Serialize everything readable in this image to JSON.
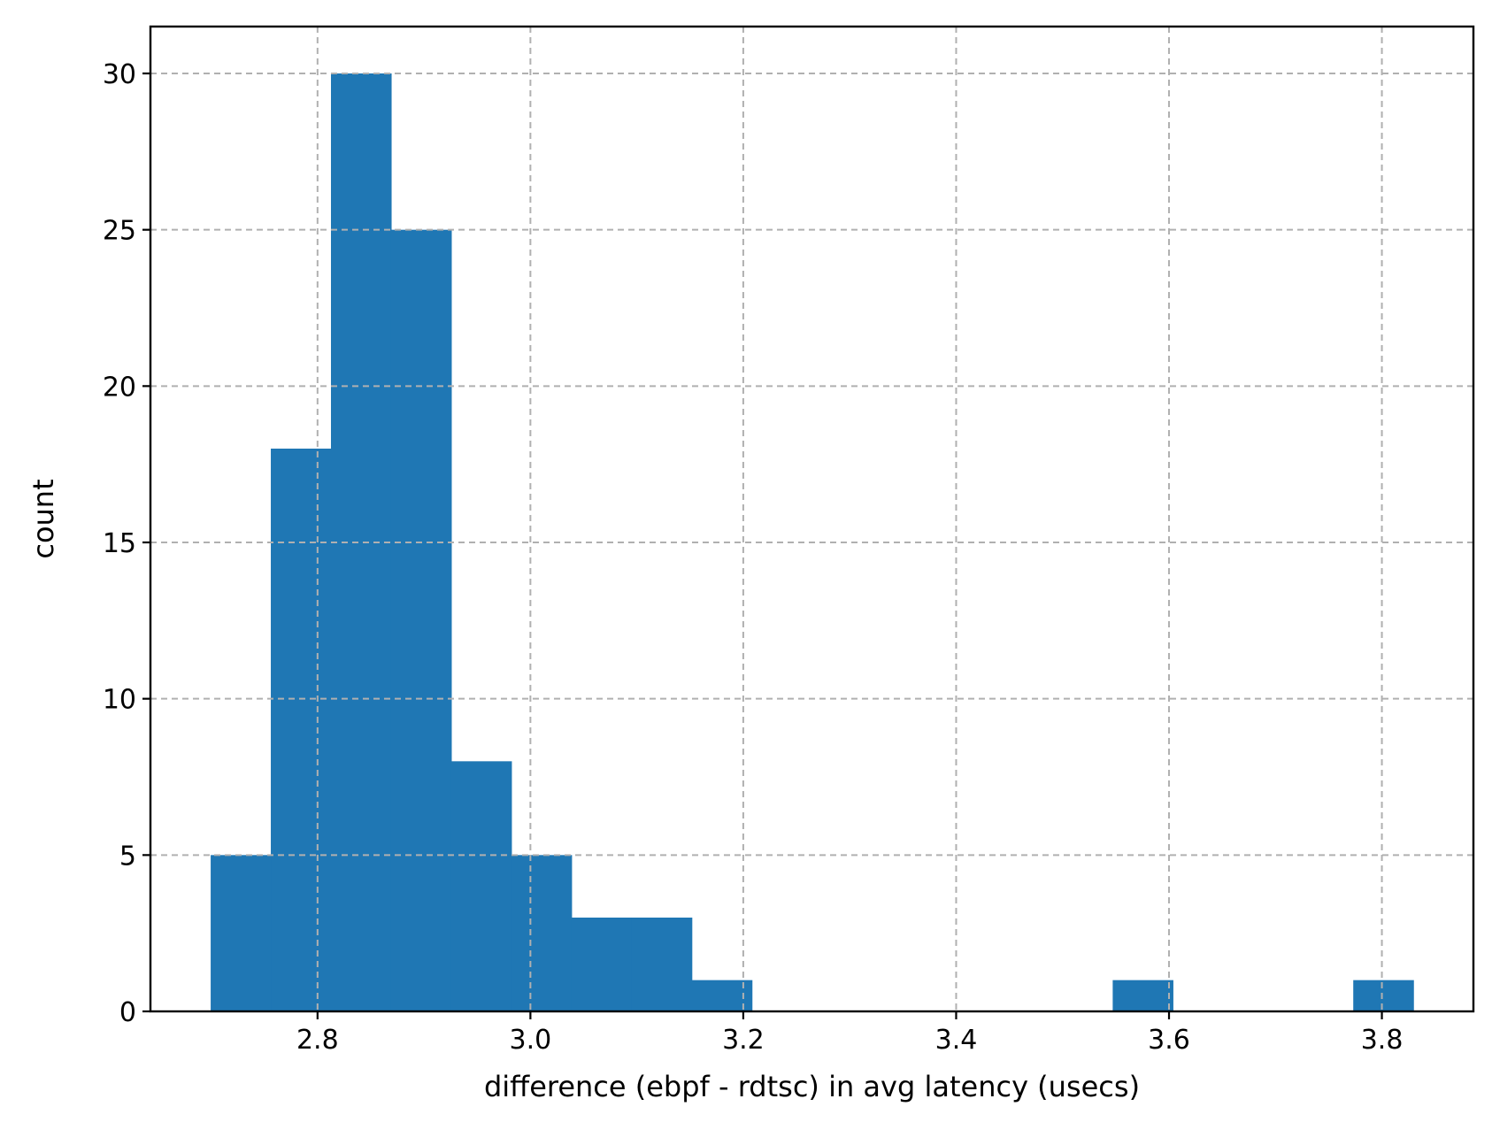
{
  "chart_data": {
    "type": "bar",
    "subtype": "histogram",
    "title": "",
    "xlabel": "difference (ebpf - rdtsc) in avg latency (usecs)",
    "ylabel": "count",
    "xlim": [
      2.643,
      3.886
    ],
    "ylim": [
      0,
      31.5
    ],
    "xticks": [
      2.8,
      3.0,
      3.2,
      3.4,
      3.6,
      3.8
    ],
    "xtick_labels": [
      "2.8",
      "3.0",
      "3.2",
      "3.4",
      "3.6",
      "3.8"
    ],
    "yticks": [
      0,
      5,
      10,
      15,
      20,
      25,
      30
    ],
    "ytick_labels": [
      "0",
      "5",
      "10",
      "15",
      "20",
      "25",
      "30"
    ],
    "grid": true,
    "bar_color": "#1f77b4",
    "grid_color": "#b0b0b0",
    "bins": [
      {
        "x0": 2.6996,
        "x1": 2.7561,
        "count": 5
      },
      {
        "x0": 2.7561,
        "x1": 2.8126,
        "count": 18
      },
      {
        "x0": 2.8126,
        "x1": 2.8691,
        "count": 30
      },
      {
        "x0": 2.8691,
        "x1": 2.9256,
        "count": 25
      },
      {
        "x0": 2.9256,
        "x1": 2.9821,
        "count": 8
      },
      {
        "x0": 2.9821,
        "x1": 3.0386,
        "count": 5
      },
      {
        "x0": 3.0386,
        "x1": 3.0951,
        "count": 3
      },
      {
        "x0": 3.0951,
        "x1": 3.1516,
        "count": 3
      },
      {
        "x0": 3.1516,
        "x1": 3.2081,
        "count": 1
      },
      {
        "x0": 3.2081,
        "x1": 3.2646,
        "count": 0
      },
      {
        "x0": 3.2646,
        "x1": 3.3211,
        "count": 0
      },
      {
        "x0": 3.3211,
        "x1": 3.3776,
        "count": 0
      },
      {
        "x0": 3.3776,
        "x1": 3.4341,
        "count": 0
      },
      {
        "x0": 3.4341,
        "x1": 3.4906,
        "count": 0
      },
      {
        "x0": 3.4906,
        "x1": 3.5471,
        "count": 0
      },
      {
        "x0": 3.5471,
        "x1": 3.6036,
        "count": 1
      },
      {
        "x0": 3.6036,
        "x1": 3.6601,
        "count": 0
      },
      {
        "x0": 3.6601,
        "x1": 3.7166,
        "count": 0
      },
      {
        "x0": 3.7166,
        "x1": 3.7731,
        "count": 0
      },
      {
        "x0": 3.7731,
        "x1": 3.8296,
        "count": 1
      }
    ]
  }
}
